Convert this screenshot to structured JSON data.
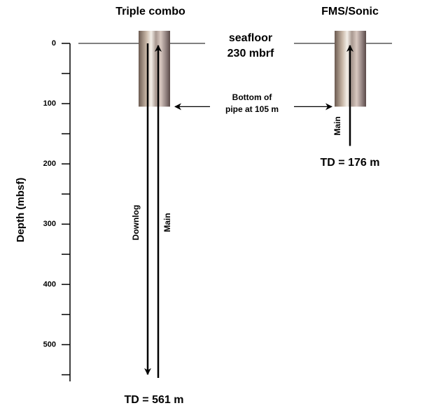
{
  "axis": {
    "label": "Depth (mbsf)",
    "ylim": [
      0,
      561
    ],
    "yticks": [
      0,
      100,
      200,
      300,
      400,
      500
    ],
    "minor_yticks": [
      50,
      150,
      250,
      350,
      450,
      550
    ]
  },
  "seafloor": [
    "seafloor",
    "230 mbrf"
  ],
  "pipe_note": [
    "Bottom of",
    "pipe at 105 m"
  ],
  "columns": [
    {
      "title": "Triple combo",
      "pipe_bottom": 105,
      "td": 561,
      "td_label": "TD = 561 m",
      "runs": [
        {
          "name": "Downlog",
          "direction": "down"
        },
        {
          "name": "Main",
          "direction": "up"
        }
      ]
    },
    {
      "title": "FMS/Sonic",
      "pipe_bottom": 105,
      "td": 176,
      "td_label": "TD = 176 m",
      "runs": [
        {
          "name": "Main",
          "direction": "up"
        }
      ]
    }
  ]
}
